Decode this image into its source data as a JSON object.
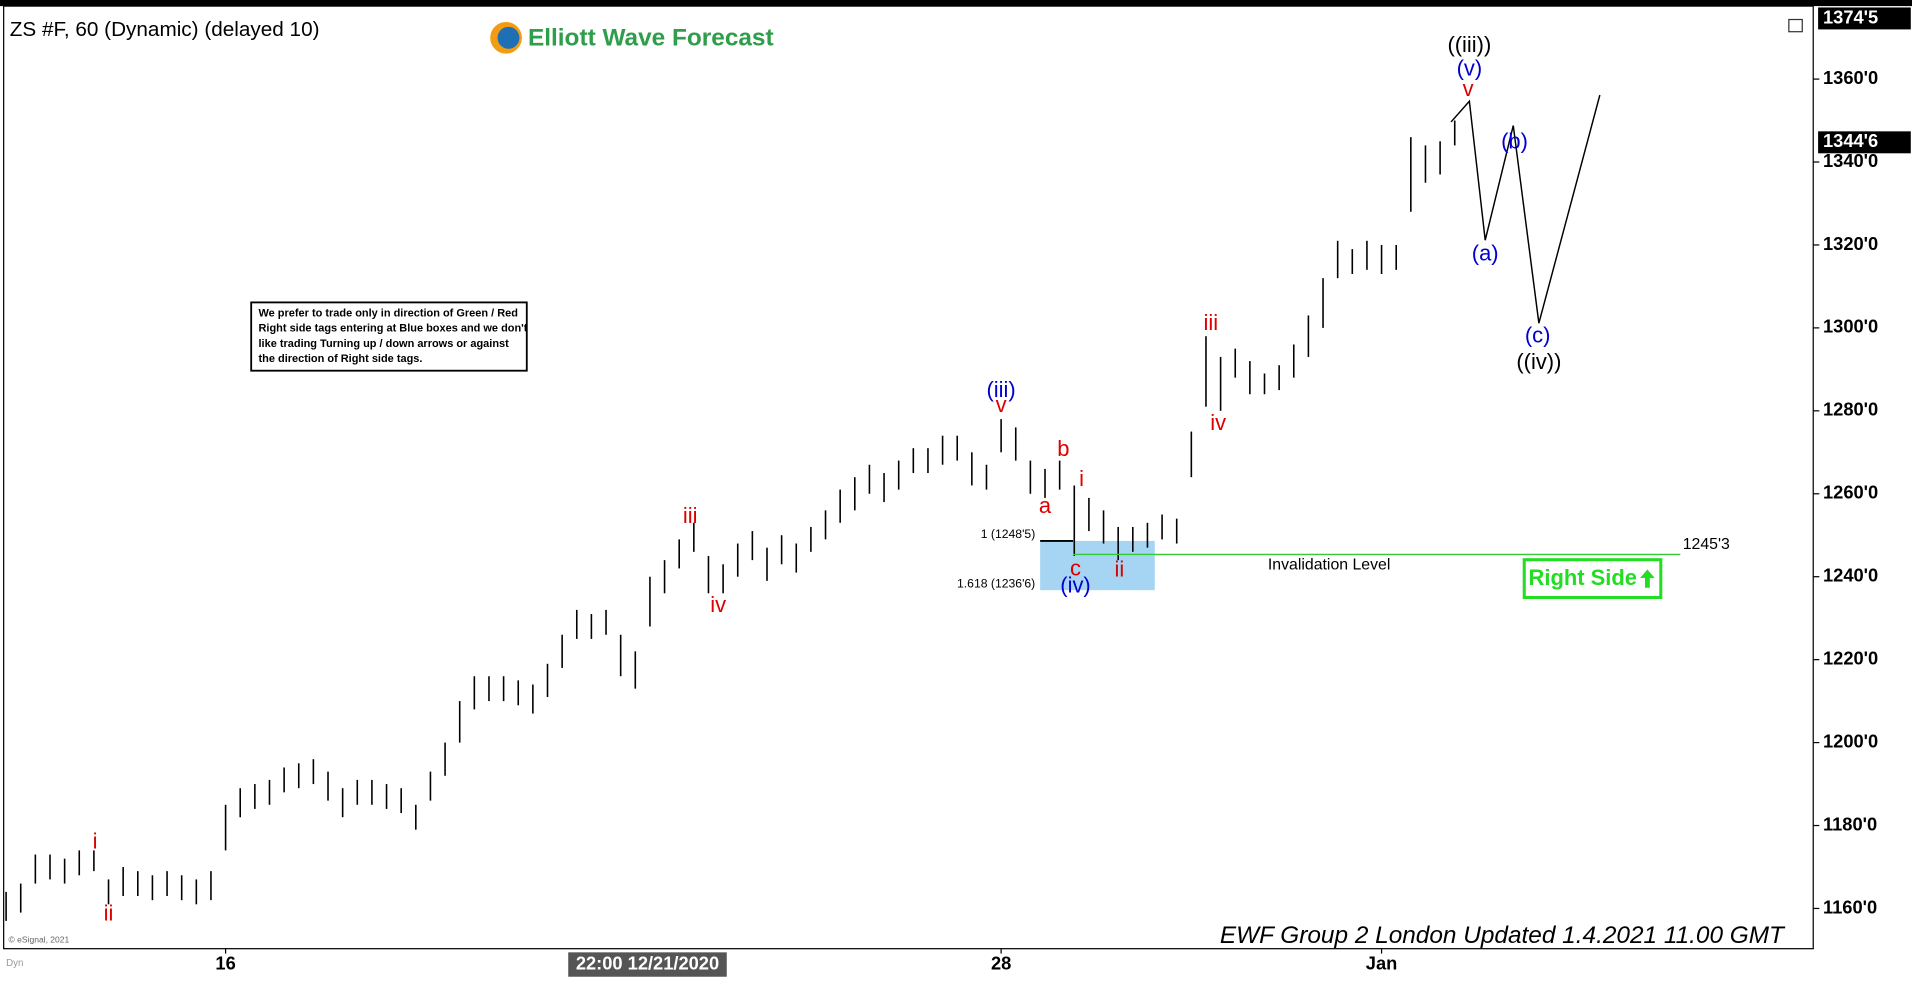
{
  "chart_data": {
    "type": "ohlc",
    "title": "ZS #F, 60 (Dynamic) (delayed 10)",
    "brand": "Elliott Wave Forecast",
    "note_lines": [
      "We prefer to trade only in direction of Green / Red",
      "Right side tags entering at Blue boxes and we don't",
      "like trading Turning up / down arrows or against",
      "the direction of Right side tags."
    ],
    "footer": "EWF Group 2 London Updated 1.4.2021 11.00 GMT",
    "copyright": "© eSignal, 2021",
    "status_label": "Dyn",
    "cursor_label": "22:00 12/21/2020",
    "right_side_tag": "Right Side",
    "color": "#000000",
    "categories": [
      null,
      null,
      null,
      null,
      null,
      null,
      null,
      null,
      null,
      null,
      null,
      null,
      null,
      null,
      null,
      "16",
      null,
      null,
      null,
      null,
      null,
      null,
      null,
      null,
      null,
      null,
      null,
      null,
      null,
      null,
      null,
      null,
      null,
      null,
      null,
      null,
      null,
      null,
      null,
      null,
      null,
      null,
      null,
      null,
      null,
      null,
      null,
      null,
      null,
      null,
      null,
      null,
      null,
      null,
      null,
      null,
      null,
      null,
      null,
      null,
      null,
      null,
      null,
      null,
      null,
      null,
      null,
      null,
      "28",
      null,
      null,
      null,
      null,
      null,
      null,
      null,
      null,
      null,
      null,
      null,
      null,
      null,
      null,
      null,
      null,
      null,
      null,
      null,
      null,
      null,
      null,
      null,
      null,
      null,
      "Jan",
      null,
      null,
      null,
      null,
      null
    ],
    "high": [
      1164,
      1166,
      1173,
      1173,
      1172,
      1174,
      1174,
      1167,
      1170,
      1169,
      1168,
      1169,
      1168,
      1167,
      1169,
      1185,
      1189,
      1190,
      1191,
      1194,
      1195,
      1196,
      1193,
      1189,
      1191,
      1191,
      1190,
      1189,
      1185,
      1193,
      1200,
      1210,
      1216,
      1216,
      1216,
      1215,
      1214,
      1219,
      1226,
      1232,
      1231,
      1232,
      1226,
      1222,
      1240,
      1244,
      1249,
      1253,
      1245,
      1243,
      1248,
      1251,
      1247,
      1250,
      1248,
      1252,
      1256,
      1261,
      1264,
      1267,
      1265,
      1268,
      1271,
      1271,
      1274,
      1274,
      1270,
      1267,
      1278,
      1276,
      1268,
      1266,
      1268,
      1262,
      1259,
      1256,
      1252,
      1252,
      1253,
      1255,
      1254,
      1275,
      1298,
      1293,
      1295,
      1292,
      1289,
      1291,
      1296,
      1303,
      1312,
      1321,
      1319,
      1321,
      1320,
      1320,
      1346,
      1344,
      1345,
      1350
    ],
    "low": [
      1157,
      1159,
      1166,
      1167,
      1166,
      1168,
      1169,
      1161,
      1163,
      1163,
      1162,
      1163,
      1162,
      1161,
      1162,
      1174,
      1182,
      1184,
      1185,
      1188,
      1189,
      1190,
      1186,
      1182,
      1185,
      1185,
      1184,
      1183,
      1179,
      1186,
      1192,
      1200,
      1208,
      1210,
      1210,
      1209,
      1207,
      1211,
      1218,
      1225,
      1225,
      1226,
      1216,
      1213,
      1228,
      1236,
      1242,
      1246,
      1236,
      1236,
      1240,
      1244,
      1239,
      1243,
      1241,
      1246,
      1249,
      1253,
      1256,
      1260,
      1258,
      1261,
      1265,
      1265,
      1267,
      1268,
      1262,
      1261,
      1270,
      1268,
      1260,
      1259,
      1261,
      1245,
      1251,
      1248,
      1244,
      1246,
      1247,
      1249,
      1248,
      1264,
      1281,
      1280,
      1288,
      1284,
      1284,
      1285,
      1288,
      1293,
      1300,
      1312,
      1313,
      1314,
      1313,
      1314,
      1328,
      1335,
      1337,
      1344
    ],
    "ylim": [
      1150.3,
      1377.6
    ],
    "yticks": [
      {
        "value": 1160,
        "label": "1160'0"
      },
      {
        "value": 1180,
        "label": "1180'0"
      },
      {
        "value": 1200,
        "label": "1200'0"
      },
      {
        "value": 1220,
        "label": "1220'0"
      },
      {
        "value": 1240,
        "label": "1240'0"
      },
      {
        "value": 1260,
        "label": "1260'0"
      },
      {
        "value": 1280,
        "label": "1280'0"
      },
      {
        "value": 1300,
        "label": "1300'0"
      },
      {
        "value": 1320,
        "label": "1320'0"
      },
      {
        "value": 1340,
        "label": "1340'0"
      },
      {
        "value": 1360,
        "label": "1360'0"
      }
    ],
    "price_tags": [
      {
        "value": 1374.625,
        "label": "1374'5"
      },
      {
        "value": 1344.75,
        "label": "1344'6"
      }
    ],
    "invalidation": {
      "text": "Invalidation Level",
      "value": 1245.375,
      "label": "1245'3"
    },
    "fib_box": {
      "top": {
        "value": 1248.625,
        "label": "1 (1248'5)"
      },
      "bottom": {
        "value": 1236.75,
        "label": "1.618 (1236'6)"
      },
      "color": "#8ecbf0"
    },
    "wave_labels": [
      {
        "text": "i",
        "color": "#dd0000"
      },
      {
        "text": "ii",
        "color": "#dd0000"
      },
      {
        "text": "iii",
        "color": "#dd0000"
      },
      {
        "text": "iv",
        "color": "#dd0000"
      },
      {
        "text": "(iii)",
        "color": "#0000cc"
      },
      {
        "text": "v",
        "color": "#dd0000"
      },
      {
        "text": "a",
        "color": "#dd0000"
      },
      {
        "text": "b",
        "color": "#dd0000"
      },
      {
        "text": "i",
        "color": "#dd0000"
      },
      {
        "text": "c",
        "color": "#dd0000"
      },
      {
        "text": "(iv)",
        "color": "#0000cc"
      },
      {
        "text": "ii",
        "color": "#dd0000"
      },
      {
        "text": "iii",
        "color": "#dd0000"
      },
      {
        "text": "iv",
        "color": "#dd0000"
      },
      {
        "text": "((iii))",
        "color": "#000000"
      },
      {
        "text": "(v)",
        "color": "#0000cc"
      },
      {
        "text": "v",
        "color": "#dd0000"
      },
      {
        "text": "(b)",
        "color": "#0000cc"
      },
      {
        "text": "(a)",
        "color": "#0000cc"
      },
      {
        "text": "(c)",
        "color": "#0000cc"
      },
      {
        "text": "((iv))",
        "color": "#000000"
      }
    ]
  }
}
